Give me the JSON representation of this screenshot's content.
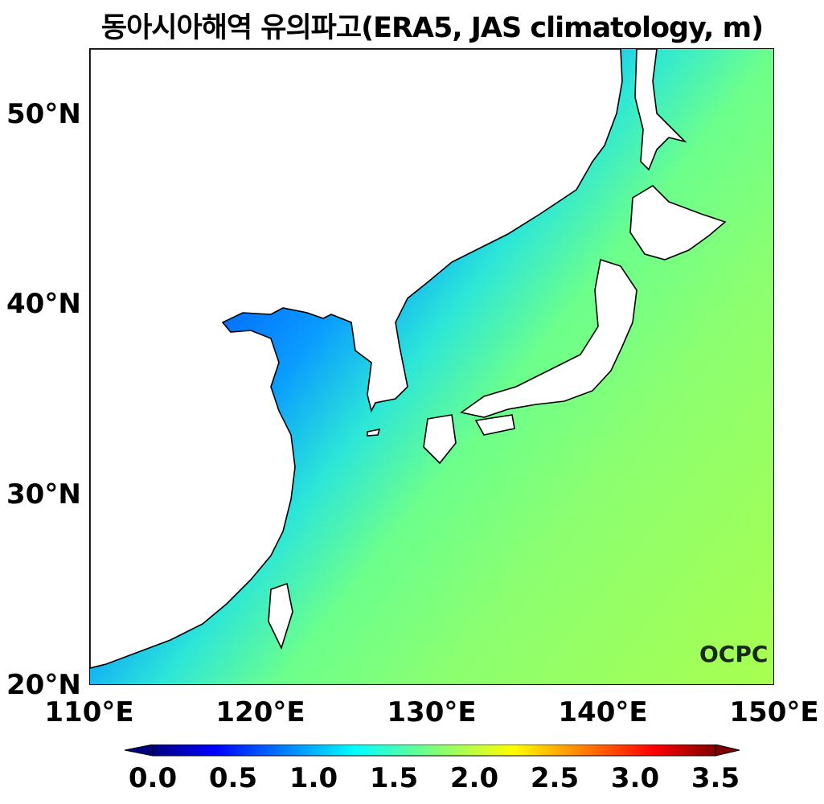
{
  "title": "동아시아해역 유의파고(ERA5, JAS climatology, m)",
  "map": {
    "extent": {
      "lon": [
        110,
        150
      ],
      "lat": [
        20,
        53.5
      ]
    },
    "lat_ticks": [
      "50°N",
      "40°N",
      "30°N",
      "20°N"
    ],
    "lon_ticks": [
      "110°E",
      "120°E",
      "130°E",
      "140°E",
      "150°E"
    ],
    "logo": "OCPC"
  },
  "colorbar": {
    "colormap": "jet",
    "range": [
      0.0,
      3.5
    ],
    "extend": "both",
    "ticks": [
      "0.0",
      "0.5",
      "1.0",
      "1.5",
      "2.0",
      "2.5",
      "3.0",
      "3.5"
    ]
  }
}
